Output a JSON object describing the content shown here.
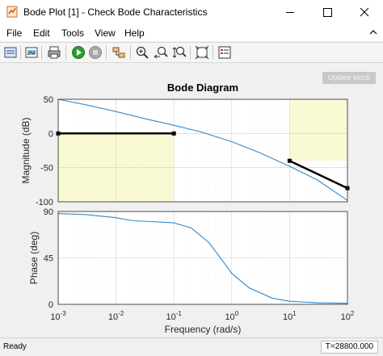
{
  "window": {
    "title": "Bode Plot [1] - Check Bode  Characteristics",
    "minimize": "minimize",
    "maximize": "maximize",
    "close": "close"
  },
  "menu": {
    "items": [
      "File",
      "Edit",
      "Tools",
      "View",
      "Help"
    ]
  },
  "toolbar": {
    "icons": [
      "print-preview-icon",
      "export-icon",
      "print-icon",
      "run-icon",
      "stop-icon",
      "link-icon",
      "zoom-in-icon",
      "zoom-x-icon",
      "zoom-y-icon",
      "fit-to-view-icon",
      "legend-icon"
    ]
  },
  "figure": {
    "update_button": "Update block"
  },
  "status": {
    "left": "Ready",
    "right": "T=28800.000"
  },
  "chart_data": {
    "type": "line",
    "title": "Bode Diagram",
    "xlabel": "Frequency  (rad/s)",
    "x_scale": "log",
    "xlim": [
      0.001,
      100
    ],
    "x_ticks": [
      0.001,
      0.01,
      0.1,
      1,
      10,
      100
    ],
    "x_tick_labels": [
      {
        "base": "10",
        "exp": "-3"
      },
      {
        "base": "10",
        "exp": "-2"
      },
      {
        "base": "10",
        "exp": "-1"
      },
      {
        "base": "10",
        "exp": "0"
      },
      {
        "base": "10",
        "exp": "1"
      },
      {
        "base": "10",
        "exp": "2"
      }
    ],
    "grid": true,
    "line_color": "#2e8bd0",
    "bound_color": "#000000",
    "region_color": "#fafad2",
    "magnitude": {
      "ylabel": "Magnitude (dB)",
      "ylim": [
        -100,
        50
      ],
      "y_ticks": [
        50,
        0,
        -50,
        -100
      ],
      "series": [
        {
          "x": [
            0.001,
            0.003,
            0.01,
            0.03,
            0.1,
            0.3,
            1,
            3,
            10,
            30,
            100
          ],
          "values": [
            50,
            42,
            32,
            22,
            12,
            2,
            -12,
            -28,
            -48,
            -68,
            -98
          ]
        }
      ],
      "bounds": [
        {
          "x": [
            0.001,
            0.1
          ],
          "values": [
            0,
            0
          ]
        },
        {
          "x": [
            10,
            100
          ],
          "values": [
            -40,
            -80
          ]
        }
      ],
      "regions": [
        {
          "x": [
            0.001,
            0.1
          ],
          "y": [
            -100,
            0
          ]
        },
        {
          "x": [
            10,
            100
          ],
          "y": [
            -40,
            50
          ]
        }
      ]
    },
    "phase": {
      "ylabel": "Phase (deg)",
      "ylim": [
        0,
        90
      ],
      "y_ticks": [
        90,
        45,
        0
      ],
      "series": [
        {
          "x": [
            0.001,
            0.003,
            0.01,
            0.02,
            0.05,
            0.1,
            0.2,
            0.4,
            0.7,
            1,
            2,
            5,
            10,
            30,
            100
          ],
          "values": [
            88,
            87,
            84,
            81,
            80,
            79,
            74,
            60,
            42,
            30,
            16,
            6,
            3,
            1.5,
            1
          ]
        }
      ]
    }
  }
}
